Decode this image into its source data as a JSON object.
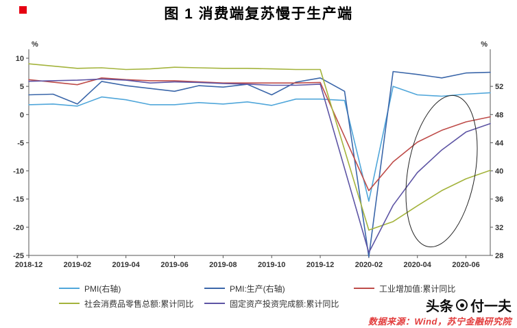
{
  "title": {
    "text": "图 1   消费端复苏慢于生产端",
    "marker_color": "#e60012"
  },
  "watermark": {
    "brand": "头条",
    "handle": "付一夫"
  },
  "source_note": "数据来源：Wind，苏宁金融研究院",
  "legend": {
    "rows": [
      [
        0,
        1,
        2
      ],
      [
        3,
        4
      ]
    ]
  },
  "chart_data": {
    "type": "line",
    "x": [
      "2018-12",
      "2019-01",
      "2019-02",
      "2019-03",
      "2019-04",
      "2019-05",
      "2019-06",
      "2019-07",
      "2019-08",
      "2019-09",
      "2019-10",
      "2019-11",
      "2019-12",
      "2020-01",
      "2020-02",
      "2020-03",
      "2020-04",
      "2020-05",
      "2020-06",
      "2020-07"
    ],
    "x_ticks": [
      "2018-12",
      "2019-02",
      "2019-04",
      "2019-06",
      "2019-08",
      "2019-10",
      "2019-12",
      "2020-02",
      "2020-04",
      "2020-06"
    ],
    "left_axis": {
      "label": "%",
      "min": -25,
      "max": 10,
      "ticks": [
        10,
        5,
        0,
        -5,
        -10,
        -15,
        -20,
        -25
      ]
    },
    "right_axis": {
      "label": "%",
      "ticks": [
        52,
        48,
        44,
        40,
        36,
        32,
        28
      ],
      "align": {
        "right_value": 52,
        "left_value": 5,
        "left_units_per_right_unit": 1.25
      }
    },
    "series": [
      {
        "name": "PMI(右轴)",
        "axis": "right",
        "color": "#4FA6DA",
        "values": [
          49.4,
          49.5,
          49.2,
          50.5,
          50.1,
          49.4,
          49.4,
          49.7,
          49.5,
          49.8,
          49.3,
          50.2,
          50.2,
          50.0,
          35.7,
          52.0,
          50.8,
          50.6,
          50.9,
          51.1
        ]
      },
      {
        "name": "PMI:生产(右轴)",
        "axis": "right",
        "color": "#3A66A9",
        "values": [
          50.8,
          50.9,
          49.5,
          52.7,
          52.1,
          51.7,
          51.3,
          52.1,
          51.9,
          52.3,
          50.8,
          52.6,
          53.2,
          51.3,
          27.8,
          54.1,
          53.7,
          53.2,
          53.9,
          54.0
        ]
      },
      {
        "name": "工业增加值:累计同比",
        "axis": "left",
        "color": "#BE4B48",
        "values": [
          6.2,
          null,
          5.3,
          6.5,
          6.2,
          6.0,
          6.0,
          5.8,
          5.6,
          5.6,
          5.6,
          5.6,
          5.7,
          null,
          -13.5,
          -8.4,
          -4.9,
          -2.8,
          -1.3,
          -0.4
        ]
      },
      {
        "name": "社会消费品零售总额:累计同比",
        "axis": "left",
        "color": "#A3B33B",
        "values": [
          9.0,
          null,
          8.2,
          8.3,
          8.0,
          8.1,
          8.4,
          8.3,
          8.2,
          8.2,
          8.1,
          8.0,
          8.0,
          null,
          -20.5,
          -19.0,
          -16.2,
          -13.5,
          -11.4,
          -9.9
        ]
      },
      {
        "name": "固定资产投资完成额:累计同比",
        "axis": "left",
        "color": "#5D54A4",
        "values": [
          5.9,
          null,
          6.1,
          6.3,
          6.1,
          5.6,
          5.8,
          5.7,
          5.5,
          5.4,
          5.2,
          5.2,
          5.4,
          null,
          -24.5,
          -16.1,
          -10.3,
          -6.3,
          -3.1,
          -1.6
        ]
      }
    ],
    "annotation": {
      "shape": "ellipse",
      "label": "recovery divergence highlight"
    }
  }
}
